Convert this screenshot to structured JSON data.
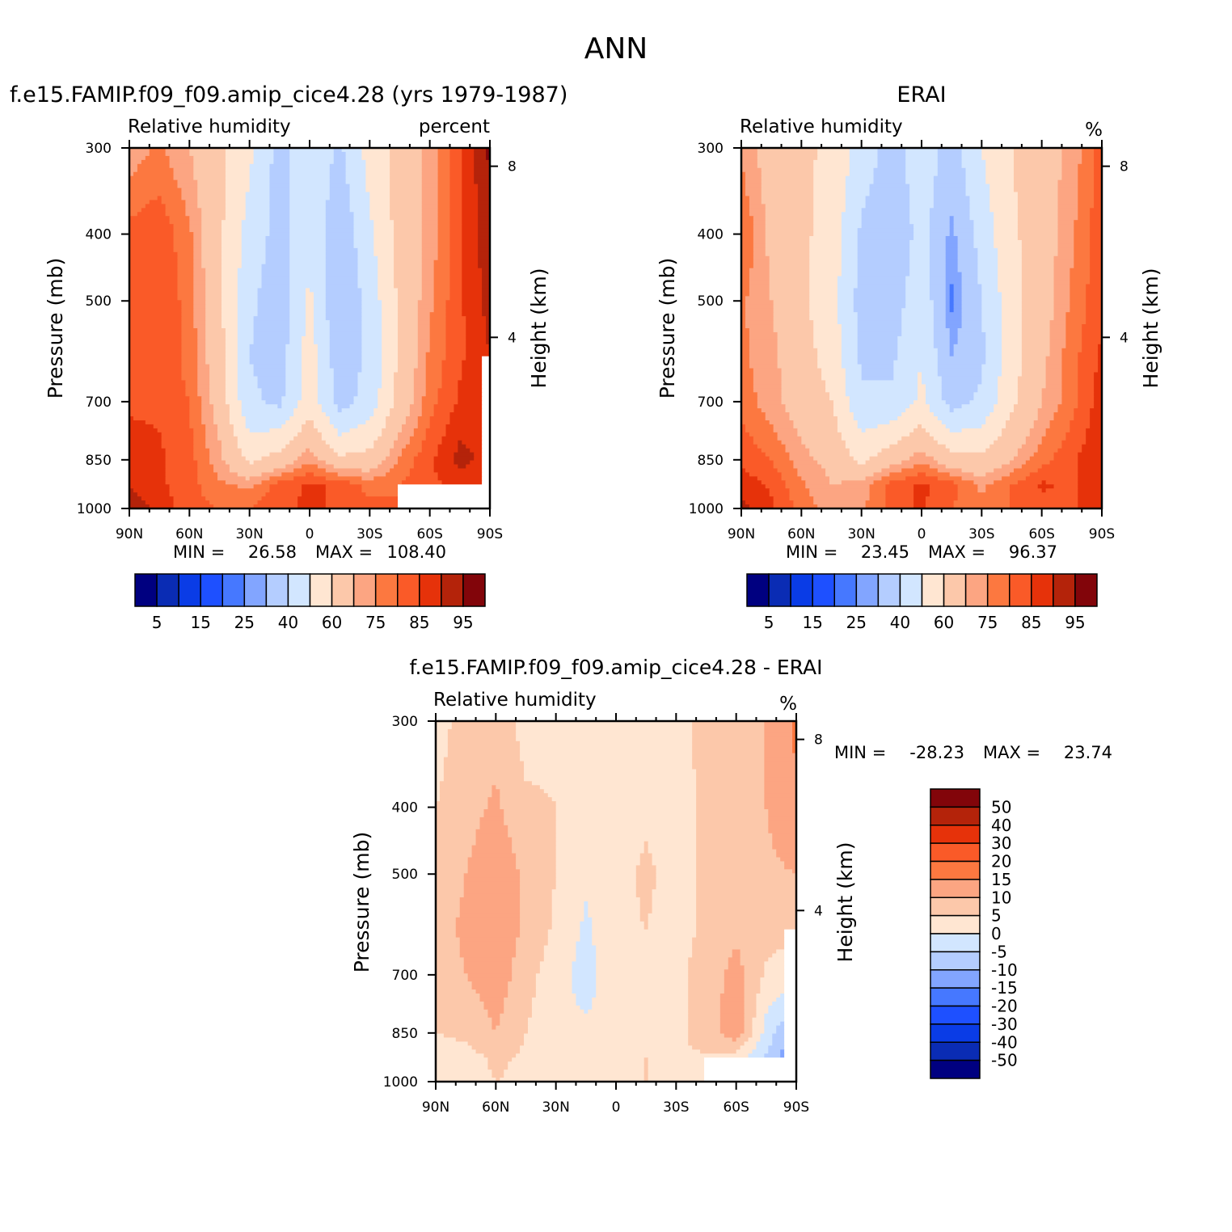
{
  "figure_title": "ANN",
  "colors": {
    "blues": [
      "#000080",
      "#0a2cb4",
      "#0a3ce6",
      "#1e50ff",
      "#4678ff",
      "#82a5ff",
      "#b4cdff",
      "#d2e6ff"
    ],
    "reds": [
      "#ffe6d2",
      "#fcc8aa",
      "#fca582",
      "#fc7840",
      "#fa5a28",
      "#e6320a",
      "#b4230a",
      "#82050a"
    ],
    "missing": "#ffffff",
    "axis": "#000000"
  },
  "chart_data": [
    {
      "id": "model",
      "type": "heatmap",
      "title": "f.e15.FAMIP.f09_f09.amip_cice4.28 (yrs 1979-1987)",
      "left_string": "Relative humidity",
      "right_string": "percent",
      "ylabel": "Pressure (mb)",
      "ylabel_right": "Height (km)",
      "xlim": [
        -90,
        90
      ],
      "x_ticks": [
        -90,
        -60,
        -30,
        0,
        30,
        60,
        90
      ],
      "x_tick_labels": [
        "90N",
        "60N",
        "30N",
        "0",
        "30S",
        "60S",
        "90S"
      ],
      "ylim": [
        300,
        1000
      ],
      "y_ticks": [
        300,
        400,
        500,
        700,
        850,
        1000
      ],
      "y_tick_labels": [
        "300",
        "400",
        "500",
        "700",
        "850",
        "1000"
      ],
      "height_ticks": [
        8,
        4
      ],
      "height_tick_labels": [
        "8",
        "4"
      ],
      "min_label": "MIN =",
      "min_value": "26.58",
      "max_label": "MAX =",
      "max_value": "108.40",
      "levels": [
        5,
        10,
        15,
        20,
        25,
        30,
        40,
        50,
        60,
        70,
        75,
        80,
        85,
        90,
        95
      ],
      "colorbar_labels": [
        "5",
        "15",
        "25",
        "40",
        "60",
        "75",
        "85",
        "95"
      ],
      "field": {
        "lat": [
          -90,
          -75,
          -60,
          -45,
          -30,
          -15,
          0,
          15,
          30,
          45,
          60,
          75,
          90
        ],
        "p": [
          300,
          400,
          500,
          600,
          700,
          850,
          925,
          1000
        ],
        "values": [
          [
            72,
            76,
            70,
            62,
            52,
            36,
            48,
            38,
            54,
            64,
            72,
            84,
            96
          ],
          [
            82,
            84,
            76,
            62,
            46,
            36,
            48,
            32,
            48,
            64,
            72,
            84,
            94
          ],
          [
            84,
            84,
            78,
            62,
            42,
            34,
            52,
            30,
            44,
            62,
            74,
            84,
            92
          ],
          [
            84,
            84,
            78,
            64,
            40,
            35,
            55,
            34,
            42,
            62,
            76,
            84,
            90
          ],
          [
            84,
            84,
            80,
            66,
            42,
            38,
            56,
            36,
            44,
            64,
            78,
            86,
            88
          ],
          [
            88,
            86,
            82,
            72,
            58,
            64,
            74,
            62,
            64,
            76,
            84,
            92,
            88
          ],
          [
            90,
            86,
            82,
            76,
            74,
            82,
            86,
            84,
            78,
            80,
            84,
            86,
            84
          ],
          [
            94,
            88,
            82,
            80,
            80,
            84,
            86,
            84,
            82,
            80,
            82,
            84,
            82
          ]
        ],
        "missing_regions": [
          {
            "lat": [
              45,
              90
            ],
            "p": [
              925,
              1000
            ]
          },
          {
            "lat": [
              87,
              90
            ],
            "p": [
              600,
              925
            ]
          }
        ]
      }
    },
    {
      "id": "obs",
      "type": "heatmap",
      "title": "ERAI",
      "left_string": "Relative humidity",
      "right_string": "%",
      "ylabel": "Pressure (mb)",
      "ylabel_right": "Height (km)",
      "xlim": [
        -90,
        90
      ],
      "x_ticks": [
        -90,
        -60,
        -30,
        0,
        30,
        60,
        90
      ],
      "x_tick_labels": [
        "90N",
        "60N",
        "30N",
        "0",
        "30S",
        "60S",
        "90S"
      ],
      "ylim": [
        300,
        1000
      ],
      "y_ticks": [
        300,
        400,
        500,
        700,
        850,
        1000
      ],
      "y_tick_labels": [
        "300",
        "400",
        "500",
        "700",
        "850",
        "1000"
      ],
      "height_ticks": [
        8,
        4
      ],
      "height_tick_labels": [
        "8",
        "4"
      ],
      "min_label": "MIN =",
      "min_value": "23.45",
      "max_label": "MAX =",
      "max_value": "96.37",
      "levels": [
        5,
        10,
        15,
        20,
        25,
        30,
        40,
        50,
        60,
        70,
        75,
        80,
        85,
        90,
        95
      ],
      "colorbar_labels": [
        "5",
        "15",
        "25",
        "40",
        "60",
        "75",
        "85",
        "95"
      ],
      "field": {
        "lat": [
          -90,
          -75,
          -60,
          -45,
          -30,
          -15,
          0,
          15,
          30,
          45,
          60,
          75,
          90
        ],
        "p": [
          300,
          400,
          500,
          600,
          700,
          850,
          925,
          1000
        ],
        "values": [
          [
            74,
            66,
            62,
            58,
            46,
            36,
            46,
            36,
            50,
            60,
            66,
            72,
            82
          ],
          [
            80,
            68,
            62,
            56,
            38,
            31,
            44,
            28,
            44,
            58,
            66,
            74,
            84
          ],
          [
            76,
            70,
            62,
            54,
            36,
            34,
            48,
            24,
            40,
            56,
            66,
            76,
            84
          ],
          [
            76,
            72,
            64,
            56,
            38,
            38,
            50,
            30,
            38,
            56,
            68,
            78,
            86
          ],
          [
            78,
            72,
            66,
            60,
            42,
            42,
            52,
            36,
            42,
            58,
            70,
            78,
            88
          ],
          [
            84,
            80,
            72,
            68,
            58,
            66,
            74,
            64,
            62,
            70,
            78,
            84,
            90
          ],
          [
            88,
            84,
            76,
            70,
            72,
            82,
            86,
            82,
            74,
            80,
            86,
            84,
            90
          ],
          [
            92,
            86,
            78,
            72,
            74,
            82,
            86,
            80,
            76,
            80,
            82,
            84,
            90
          ]
        ],
        "missing_regions": []
      }
    },
    {
      "id": "diff",
      "type": "heatmap",
      "title": "f.e15.FAMIP.f09_f09.amip_cice4.28 - ERAI",
      "left_string": "Relative humidity",
      "right_string": "%",
      "ylabel": "Pressure (mb)",
      "ylabel_right": "Height (km)",
      "xlim": [
        -90,
        90
      ],
      "x_ticks": [
        -90,
        -60,
        -30,
        0,
        30,
        60,
        90
      ],
      "x_tick_labels": [
        "90N",
        "60N",
        "30N",
        "0",
        "30S",
        "60S",
        "90S"
      ],
      "ylim": [
        300,
        1000
      ],
      "y_ticks": [
        300,
        400,
        500,
        700,
        850,
        1000
      ],
      "y_tick_labels": [
        "300",
        "400",
        "500",
        "700",
        "850",
        "1000"
      ],
      "height_ticks": [
        8,
        4
      ],
      "height_tick_labels": [
        "8",
        "4"
      ],
      "min_label": "MIN =",
      "min_value": "-28.23",
      "max_label": "MAX =",
      "max_value": "23.74",
      "levels": [
        -50,
        -40,
        -30,
        -20,
        -15,
        -10,
        -5,
        0,
        5,
        10,
        15,
        20,
        30,
        40,
        50
      ],
      "colorbar_labels": [
        "50",
        "40",
        "30",
        "20",
        "15",
        "10",
        "5",
        "0",
        "-5",
        "-10",
        "-15",
        "-20",
        "-30",
        "-40",
        "-50"
      ],
      "field": {
        "lat": [
          -90,
          -75,
          -60,
          -45,
          -30,
          -15,
          0,
          15,
          30,
          45,
          60,
          75,
          90
        ],
        "p": [
          300,
          400,
          500,
          600,
          700,
          850,
          925,
          1000
        ],
        "values": [
          [
            3,
            7,
            8,
            3,
            4,
            2,
            2,
            4,
            4,
            6,
            7,
            10,
            16
          ],
          [
            5,
            8,
            11,
            6,
            5,
            2,
            2,
            4,
            3,
            6,
            7,
            10,
            14
          ],
          [
            7,
            10,
            14,
            9,
            5,
            1,
            3,
            6,
            3,
            6,
            7,
            9,
            10
          ],
          [
            8,
            11,
            14,
            9,
            4,
            -1,
            4,
            5,
            3,
            6,
            9,
            7,
            6
          ],
          [
            7,
            10,
            13,
            7,
            2,
            -2,
            3,
            2,
            4,
            7,
            12,
            4,
            2
          ],
          [
            5,
            6,
            10,
            5,
            1,
            1,
            2,
            2,
            3,
            8,
            13,
            -2,
            -12
          ],
          [
            3,
            3,
            6,
            4,
            3,
            4,
            2,
            5,
            5,
            4,
            2,
            -6,
            -16
          ],
          [
            2,
            3,
            5,
            4,
            5,
            5,
            2,
            5,
            4,
            3,
            1,
            -5,
            -8
          ]
        ],
        "missing_regions": [
          {
            "lat": [
              45,
              90
            ],
            "p": [
              925,
              1000
            ]
          },
          {
            "lat": [
              84,
              90
            ],
            "p": [
              600,
              925
            ]
          }
        ]
      }
    }
  ]
}
